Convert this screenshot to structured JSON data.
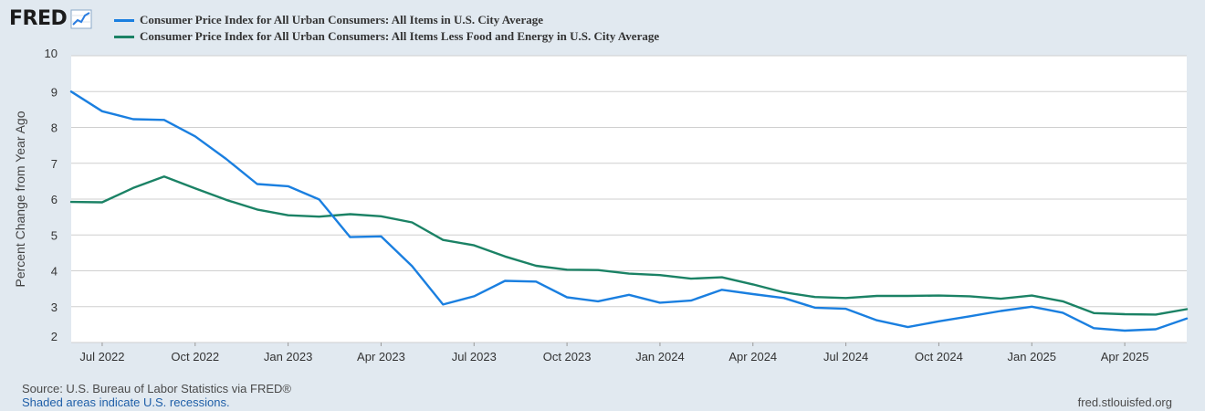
{
  "header": {
    "logo_text": "FRED",
    "logo_icon": "line-chart-icon"
  },
  "colors": {
    "background": "#e1e9f0",
    "plot_bg": "#ffffff",
    "grid": "#cfcfcf",
    "series_cpi": "#1a7fe0",
    "series_core": "#1b8265"
  },
  "footer": {
    "source": "Source: U.S. Bureau of Labor Statistics via FRED®",
    "recession_note": "Shaded areas indicate U.S. recessions.",
    "url": "fred.stlouisfed.org"
  },
  "chart_data": {
    "type": "line",
    "title": "",
    "xlabel": "",
    "ylabel": "Percent Change from Year Ago",
    "ylim": [
      2,
      10
    ],
    "yticks": [
      "2",
      "3",
      "4",
      "5",
      "6",
      "7",
      "8",
      "9",
      "10"
    ],
    "grid": true,
    "legend_position": "top-left",
    "x": [
      "2022-06",
      "2022-07",
      "2022-08",
      "2022-09",
      "2022-10",
      "2022-11",
      "2022-12",
      "2023-01",
      "2023-02",
      "2023-03",
      "2023-04",
      "2023-05",
      "2023-06",
      "2023-07",
      "2023-08",
      "2023-09",
      "2023-10",
      "2023-11",
      "2023-12",
      "2024-01",
      "2024-02",
      "2024-03",
      "2024-04",
      "2024-05",
      "2024-06",
      "2024-07",
      "2024-08",
      "2024-09",
      "2024-10",
      "2024-11",
      "2024-12",
      "2025-01",
      "2025-02",
      "2025-03",
      "2025-04",
      "2025-05",
      "2025-06"
    ],
    "xticks": [
      {
        "date": "2022-07",
        "label": "Jul 2022"
      },
      {
        "date": "2022-10",
        "label": "Oct 2022"
      },
      {
        "date": "2023-01",
        "label": "Jan 2023"
      },
      {
        "date": "2023-04",
        "label": "Apr 2023"
      },
      {
        "date": "2023-07",
        "label": "Jul 2023"
      },
      {
        "date": "2023-10",
        "label": "Oct 2023"
      },
      {
        "date": "2024-01",
        "label": "Jan 2024"
      },
      {
        "date": "2024-04",
        "label": "Apr 2024"
      },
      {
        "date": "2024-07",
        "label": "Jul 2024"
      },
      {
        "date": "2024-10",
        "label": "Oct 2024"
      },
      {
        "date": "2025-01",
        "label": "Jan 2025"
      },
      {
        "date": "2025-04",
        "label": "Apr 2025"
      }
    ],
    "series": [
      {
        "name": "Consumer Price Index for All Urban Consumers: All Items in U.S. City Average",
        "color": "#1a7fe0",
        "values": [
          9.0,
          8.45,
          8.23,
          8.21,
          7.75,
          7.12,
          6.42,
          6.36,
          5.99,
          4.94,
          4.96,
          4.13,
          3.06,
          3.29,
          3.72,
          3.7,
          3.26,
          3.15,
          3.33,
          3.11,
          3.17,
          3.47,
          3.35,
          3.24,
          2.97,
          2.94,
          2.62,
          2.43,
          2.59,
          2.73,
          2.88,
          3.0,
          2.83,
          2.4,
          2.33,
          2.37,
          2.67
        ]
      },
      {
        "name": "Consumer Price Index for All Urban Consumers: All Items Less Food and Energy in U.S. City Average",
        "color": "#1b8265",
        "values": [
          5.92,
          5.91,
          6.31,
          6.63,
          6.3,
          5.98,
          5.71,
          5.55,
          5.51,
          5.58,
          5.52,
          5.35,
          4.86,
          4.71,
          4.4,
          4.14,
          4.03,
          4.02,
          3.92,
          3.88,
          3.78,
          3.82,
          3.62,
          3.4,
          3.27,
          3.24,
          3.3,
          3.3,
          3.31,
          3.29,
          3.22,
          3.31,
          3.15,
          2.82,
          2.79,
          2.78,
          2.93
        ]
      }
    ]
  }
}
